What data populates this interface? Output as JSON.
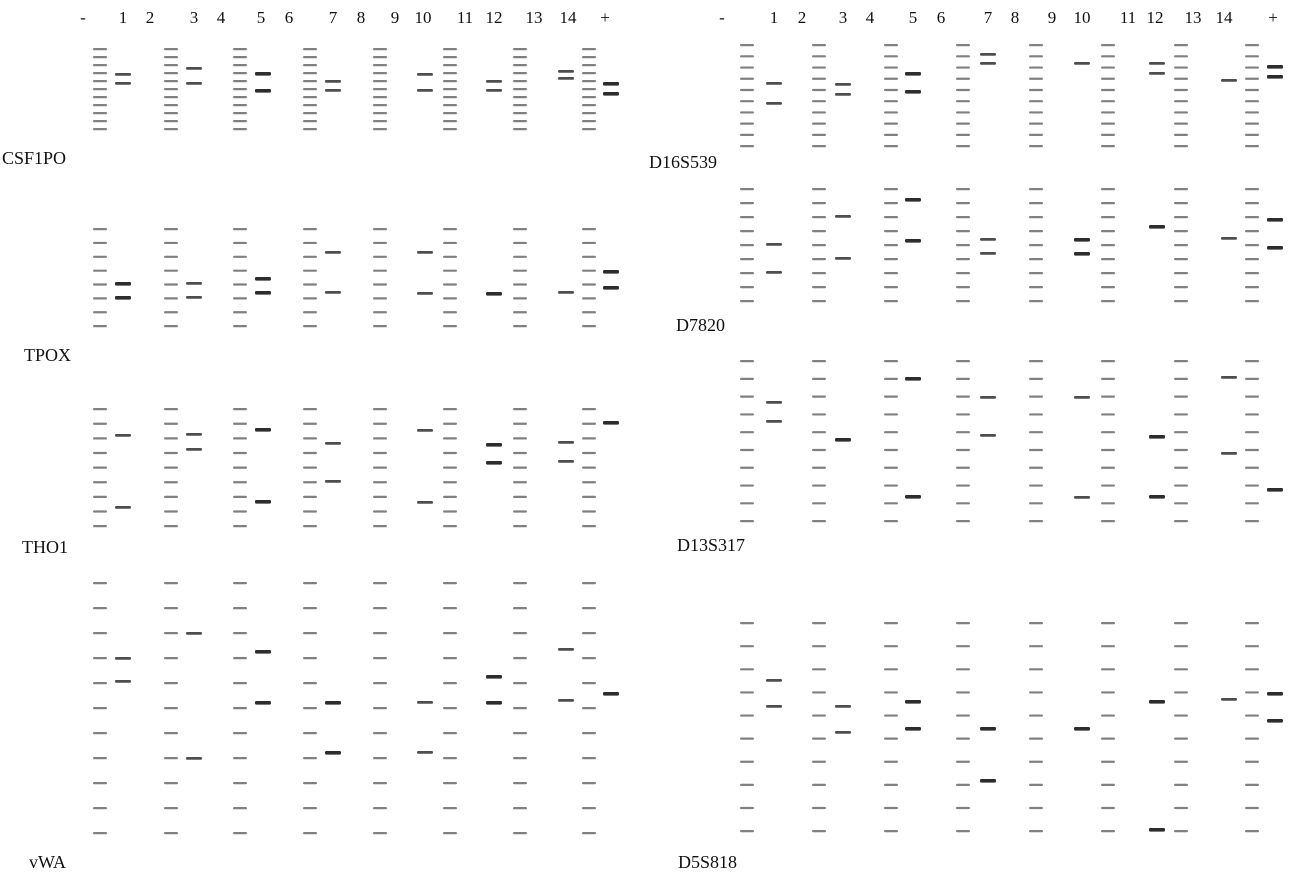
{
  "figure": {
    "left_panel": {
      "lane_labels": [
        "-",
        "1",
        "2",
        "3",
        "4",
        "5",
        "6",
        "7",
        "8",
        "9",
        "10",
        "11",
        "12",
        "13",
        "14",
        "+"
      ],
      "loci": [
        {
          "name": "CSF1PO"
        },
        {
          "name": "TPOX"
        },
        {
          "name": "THO1"
        },
        {
          "name": "vWA"
        }
      ]
    },
    "right_panel": {
      "lane_labels": [
        "-",
        "1",
        "2",
        "3",
        "4",
        "5",
        "6",
        "7",
        "8",
        "9",
        "10",
        "11",
        "12",
        "13",
        "14",
        "+"
      ],
      "loci": [
        {
          "name": "D16S539"
        },
        {
          "name": "D7820"
        },
        {
          "name": "D13S317"
        },
        {
          "name": "D5S818"
        }
      ]
    },
    "colors": {
      "background": "#ffffff",
      "band": "#222222",
      "ladder": "#555555"
    }
  }
}
